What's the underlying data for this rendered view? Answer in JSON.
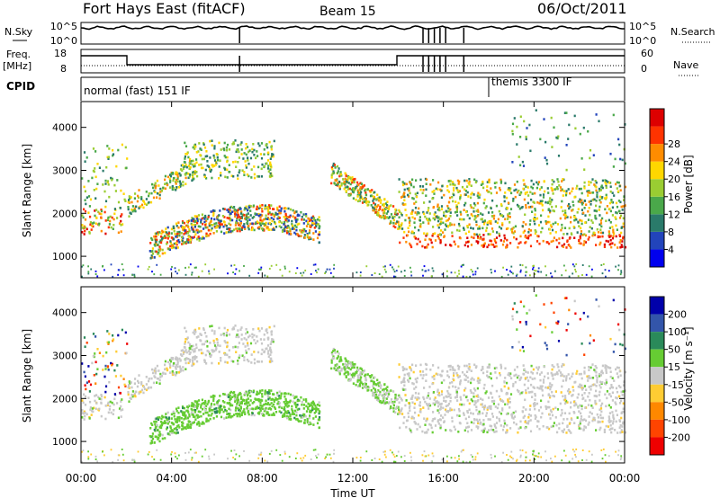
{
  "header": {
    "station": "Fort Hays East (fitACF)",
    "beam": "Beam 15",
    "date": "06/Oct/2011"
  },
  "noise_panel": {
    "left_label": "N.Sky",
    "right_label": "N.Search",
    "left_ticks": [
      "10^5",
      "10^0"
    ],
    "right_ticks": [
      "10^5",
      "10^0"
    ]
  },
  "freq_panel": {
    "left_label_1": "Freq.",
    "left_label_2": "[MHz]",
    "right_label": "Nave",
    "left_ticks": [
      "18",
      "8"
    ],
    "right_ticks": [
      "60",
      "0"
    ]
  },
  "cpid_panel": {
    "label": "CPID",
    "modes": [
      {
        "name": "normal (fast) 151 IF",
        "start_hour": 0
      },
      {
        "name": "themis 3300 IF",
        "start_hour": 18
      }
    ]
  },
  "colors": {
    "power_scale": [
      "#0000ee",
      "#2244bb",
      "#2a7a6a",
      "#4aa84a",
      "#9acd32",
      "#ffd700",
      "#ff8c00",
      "#ff3300",
      "#dd0000"
    ],
    "velocity_scale": [
      "#0000aa",
      "#3355aa",
      "#2a8a5a",
      "#66cc33",
      "#c8c8c8",
      "#ffcc33",
      "#ff8800",
      "#ff4400",
      "#ee0000"
    ]
  },
  "chart_data": [
    {
      "type": "heatmap",
      "name": "power",
      "ylabel": "Slant Range [km]",
      "yticks": [
        1000,
        2000,
        3000,
        4000
      ],
      "ylim": [
        500,
        4600
      ],
      "xlim": [
        0,
        24
      ],
      "colorbar_label": "Power [dB]",
      "colorbar_ticks": [
        4,
        8,
        12,
        16,
        20,
        24,
        28
      ],
      "colorbar_range": [
        0,
        32
      ]
    },
    {
      "type": "heatmap",
      "name": "velocity",
      "ylabel": "Slant Range [km]",
      "yticks": [
        1000,
        2000,
        3000,
        4000
      ],
      "ylim": [
        500,
        4600
      ],
      "xlim": [
        0,
        24
      ],
      "colorbar_label": "Velocity [m s⁻¹]",
      "colorbar_ticks": [
        "200",
        "100",
        "50",
        "15",
        "-15",
        "-50",
        "-100",
        "-200"
      ]
    },
    {
      "type": "line",
      "name": "x_axis",
      "xlabel": "Time UT",
      "xticks": [
        "00:00",
        "04:00",
        "08:00",
        "12:00",
        "16:00",
        "20:00",
        "00:00"
      ]
    }
  ]
}
